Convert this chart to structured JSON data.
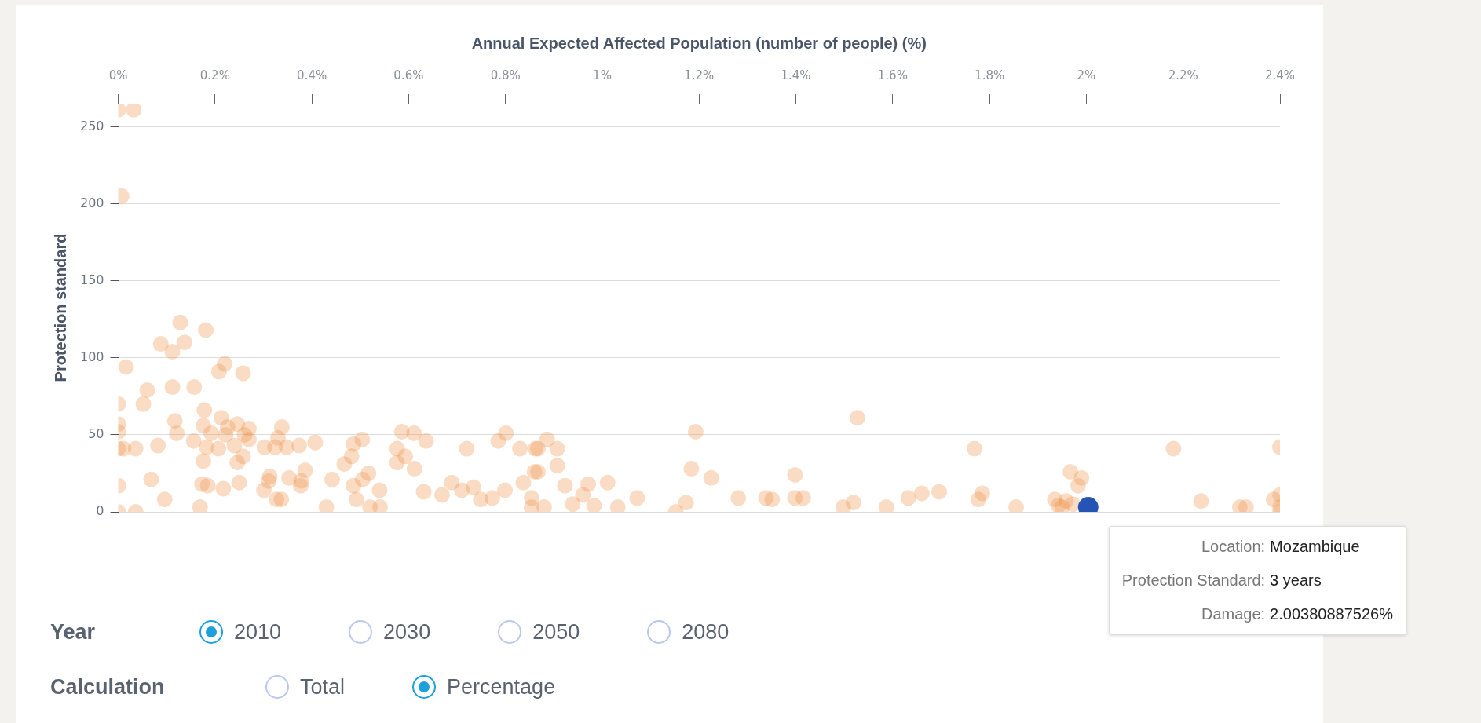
{
  "chart_data": [
    {
      "type": "scatter",
      "xlabel": "Annual Expected Affected Population (number of people) (%)",
      "ylabel": "Protection standard",
      "xlim": [
        0,
        2.4
      ],
      "ylim": [
        0,
        265
      ],
      "xticks": [
        {
          "value": 0,
          "label": "0%"
        },
        {
          "value": 0.2,
          "label": "0.2%"
        },
        {
          "value": 0.4,
          "label": "0.4%"
        },
        {
          "value": 0.6,
          "label": "0.6%"
        },
        {
          "value": 0.8,
          "label": "0.8%"
        },
        {
          "value": 1,
          "label": "1%"
        },
        {
          "value": 1.2,
          "label": "1.2%"
        },
        {
          "value": 1.4,
          "label": "1.4%"
        },
        {
          "value": 1.6,
          "label": "1.6%"
        },
        {
          "value": 1.8,
          "label": "1.8%"
        },
        {
          "value": 2,
          "label": "2%"
        },
        {
          "value": 2.2,
          "label": "2.2%"
        },
        {
          "value": 2.4,
          "label": "2.4%"
        }
      ],
      "yticks": [
        0,
        50,
        100,
        150,
        200,
        250
      ],
      "grid": "y",
      "legend": false,
      "marker": "circle",
      "series": [
        {
          "color": "#ef9146",
          "x": [
            0,
            0.032,
            0.007,
            0.128,
            0.181,
            0.088,
            0.137,
            0.112,
            0.016,
            0.22,
            0.208,
            0.258,
            0.06,
            0.052,
            0.112,
            0.157,
            0,
            0.178,
            0.213,
            0.117,
            0,
            0,
            0.121,
            0.176,
            0.246,
            0.27,
            0.226,
            0.192,
            0.222,
            0.261,
            0.156,
            0.27,
            0,
            0.011,
            0.036,
            0.082,
            0.183,
            0.207,
            0.24,
            0.338,
            0.33,
            0.302,
            0.324,
            0.348,
            0.374,
            0.407,
            0.258,
            0.246,
            0.176,
            0,
            0.068,
            0.096,
            0.169,
            0.036,
            0,
            0.173,
            0.185,
            0.217,
            0.25,
            0.313,
            0.311,
            0.301,
            0.327,
            0.337,
            0.353,
            0.386,
            0.378,
            0.377,
            0.442,
            0.467,
            0.482,
            0.486,
            0.504,
            0.517,
            0.505,
            0.486,
            0.492,
            0.54,
            0.52,
            0.541,
            0.43,
            0.586,
            0.611,
            0.636,
            0.576,
            0.593,
            0.576,
            0.612,
            0.631,
            0.669,
            0.689,
            0.71,
            0.734,
            0.749,
            0.773,
            0.799,
            0.72,
            0.785,
            0.801,
            0.83,
            0.862,
            0.837,
            0.86,
            0.854,
            0.854,
            0.886,
            0.867,
            0.907,
            0.907,
            0.867,
            0.923,
            0.971,
            1.011,
            0.939,
            0.96,
            0.983,
            1.032,
            0.88,
            1.072,
            1.193,
            1.184,
            1.225,
            1.152,
            1.173,
            1.281,
            1.338,
            1.351,
            1.398,
            1.398,
            1.415,
            1.527,
            1.498,
            1.519,
            1.587,
            1.632,
            1.66,
            1.696,
            1.769,
            1.785,
            1.777,
            1.855,
            2.18,
            2.4,
            1.967,
            1.99,
            1.983,
            1.935,
            1.942,
            1.95,
            1.958,
            1.972,
            2.237,
            2.317,
            2.33,
            2.4,
            2.4,
            2.4,
            2.387
          ],
          "values": [
            261,
            261,
            205,
            123,
            118,
            109,
            110,
            104,
            94,
            96,
            91,
            90,
            79,
            70,
            81,
            81,
            70,
            66,
            61,
            59,
            57,
            52,
            51,
            56,
            57,
            54,
            55,
            51,
            50,
            50,
            46,
            47,
            41,
            41,
            41,
            43,
            42,
            41,
            43,
            55,
            48,
            42,
            42,
            42,
            43,
            45,
            36,
            32,
            33,
            17,
            21,
            8,
            3,
            0,
            0,
            18,
            17,
            15,
            19,
            23,
            20,
            14,
            8,
            8,
            22,
            27,
            20,
            17,
            21,
            31,
            36,
            44,
            47,
            25,
            21,
            17,
            8,
            14,
            3,
            3,
            3,
            52,
            51,
            46,
            41,
            36,
            32,
            28,
            13,
            11,
            19,
            14,
            16,
            8,
            9,
            14,
            41,
            46,
            51,
            41,
            41,
            19,
            26,
            9,
            3,
            47,
            41,
            41,
            30,
            26,
            17,
            18,
            19,
            5,
            11,
            4,
            3,
            3,
            9,
            52,
            28,
            22,
            0,
            6,
            9,
            9,
            8,
            24,
            9,
            9,
            61,
            3,
            6,
            3,
            9,
            12,
            13,
            41,
            12,
            8,
            3,
            41,
            42,
            26,
            22,
            17,
            8,
            4,
            3,
            7,
            5,
            7,
            3,
            3,
            11,
            3,
            0,
            8
          ]
        },
        {
          "color": "#2554b5",
          "x": [
            2.0038
          ],
          "values": [
            3
          ]
        }
      ],
      "annotations": [
        "Location: Mozambique",
        "Protection Standard: 3 years",
        "Damage: 2.00380887526%"
      ]
    },
    {
      "type": "other",
      "annotations": [
        "Year",
        "2010",
        "2030",
        "2050",
        "2080",
        "Calculation",
        "Total",
        "Percentage"
      ]
    }
  ]
}
